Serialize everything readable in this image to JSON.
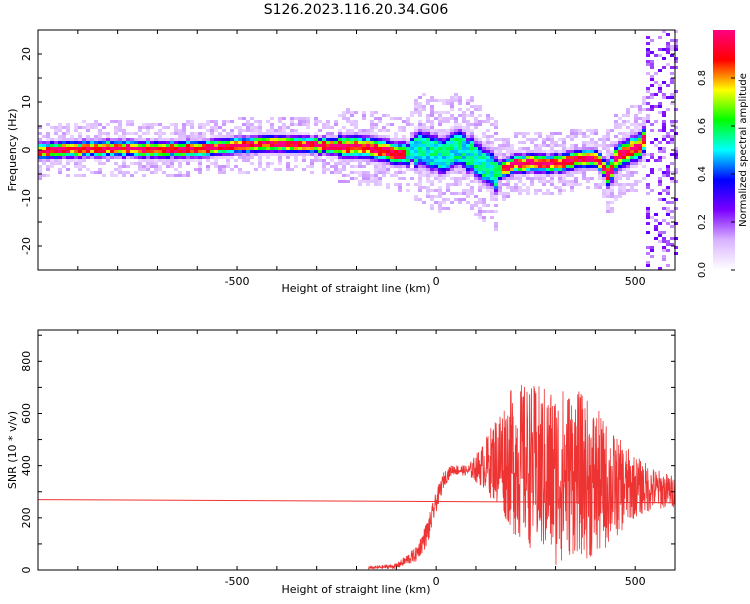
{
  "title": "S126.2023.116.20.34.G06",
  "chart_data": [
    {
      "type": "heatmap",
      "xlabel": "Height of straight line (km)",
      "ylabel": "Frequency (Hz)",
      "xlim": [
        -1000,
        600
      ],
      "ylim": [
        -25,
        25
      ],
      "xticks": [
        -500,
        0,
        500
      ],
      "yticks": [
        -20,
        -10,
        0,
        10,
        20
      ],
      "colorbar": {
        "label": "Normalized spectral amplitude",
        "range": [
          0.0,
          1.0
        ],
        "ticks": [
          "0.0",
          "0.2",
          "0.4",
          "0.6",
          "0.8"
        ],
        "colormap": [
          "#ffffff",
          "#d9b3ff",
          "#7a00ff",
          "#0000ff",
          "#00ffff",
          "#00ff00",
          "#ffff00",
          "#ff0000",
          "#ff0080"
        ]
      },
      "ridge": {
        "x": [
          -1000,
          -900,
          -800,
          -700,
          -600,
          -500,
          -400,
          -300,
          -250,
          -200,
          -150,
          -100,
          -50,
          0,
          50,
          100,
          150,
          200,
          250,
          300,
          350,
          400,
          430,
          450,
          500,
          520
        ],
        "y": [
          0,
          0.5,
          0.8,
          0.3,
          0.5,
          1.3,
          1.6,
          1.2,
          1.0,
          1.0,
          0.5,
          -0.5,
          0.5,
          -1.0,
          0.8,
          -2.0,
          -4.0,
          -2.5,
          -2.5,
          -2.5,
          -1.5,
          -1.5,
          -5.0,
          -1.0,
          0.8,
          2.5
        ]
      },
      "grid": false
    },
    {
      "type": "line",
      "xlabel": "Height of straight line (km)",
      "ylabel": "SNR (10 * v/v)",
      "xlim": [
        -1000,
        600
      ],
      "ylim": [
        0,
        920
      ],
      "xticks": [
        -500,
        0,
        500
      ],
      "yticks": [
        0,
        200,
        400,
        600,
        800
      ],
      "color": "#ee3333",
      "series": [
        {
          "x": [
            -1000,
            600
          ],
          "y": [
            270,
            258
          ]
        },
        {
          "x": [
            -170,
            -100,
            -50,
            -20,
            0,
            20,
            40,
            80,
            120,
            160,
            200,
            250,
            300,
            350,
            400,
            450,
            500,
            550,
            600
          ],
          "y_mean": [
            8,
            15,
            60,
            150,
            260,
            350,
            385,
            380,
            400,
            430,
            420,
            390,
            360,
            380,
            330,
            320,
            320,
            310,
            300
          ],
          "y_spread": [
            5,
            10,
            30,
            50,
            40,
            30,
            20,
            20,
            90,
            200,
            300,
            320,
            350,
            320,
            300,
            200,
            120,
            80,
            60
          ]
        }
      ],
      "grid": false
    }
  ]
}
